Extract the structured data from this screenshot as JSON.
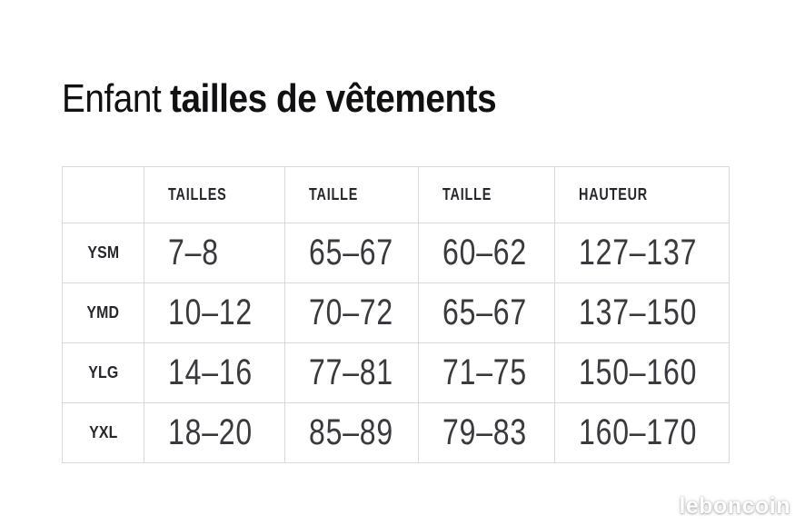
{
  "header": {
    "title_regular": "Enfant",
    "title_bold": "tailles de vêtements"
  },
  "chart_data": {
    "type": "table",
    "title": "Enfant tailles de vêtements",
    "columns": [
      "",
      "TAILLES",
      "TAILLE",
      "TAILLE",
      "HAUTEUR"
    ],
    "rows": [
      {
        "label": "YSM",
        "values": [
          "7–8",
          "65–67",
          "60–62",
          "127–137"
        ]
      },
      {
        "label": "YMD",
        "values": [
          "10–12",
          "70–72",
          "65–67",
          "137–150"
        ]
      },
      {
        "label": "YLG",
        "values": [
          "14–16",
          "77–81",
          "71–75",
          "150–160"
        ]
      },
      {
        "label": "YXL",
        "values": [
          "18–20",
          "85–89",
          "79–83",
          "160–170"
        ]
      }
    ]
  },
  "watermark": {
    "label": "leboncoin"
  },
  "colors": {
    "background": "#ffffff",
    "border": "#d9d9d9",
    "title_text": "#111114",
    "header_text": "#26262b",
    "data_text": "#3a3a3e",
    "watermark_text": "#ffffff"
  }
}
